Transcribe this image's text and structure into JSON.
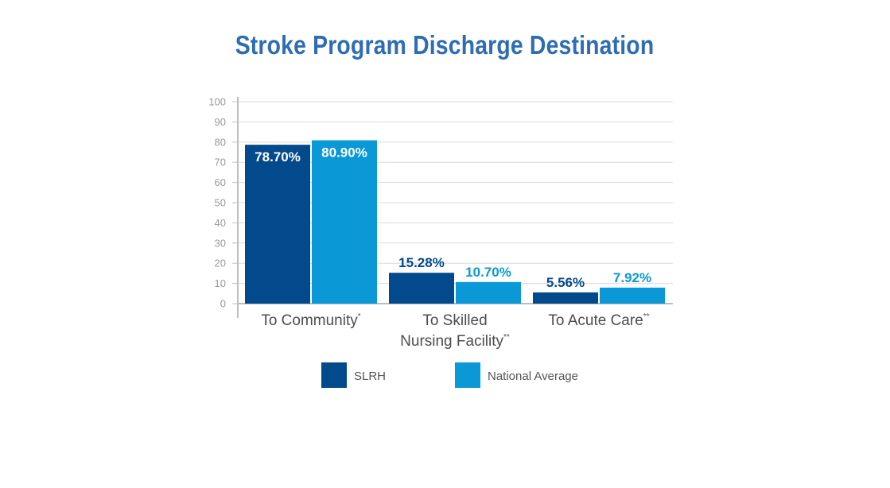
{
  "colors": {
    "title": "#2e6db4",
    "slrh": "#034a8c",
    "national": "#0a99d6",
    "grid": "#dcdcdc",
    "axis": "#bdbdbd"
  },
  "chart_data": {
    "type": "bar",
    "title": "Stroke Program Discharge Destination",
    "xlabel": "",
    "ylabel": "",
    "ylim": [
      0,
      100
    ],
    "yticks": [
      0,
      10,
      20,
      30,
      40,
      50,
      60,
      70,
      80,
      90,
      100
    ],
    "grid": true,
    "legend_position": "bottom",
    "categories": [
      {
        "lines": [
          "To Community"
        ],
        "superscript": "*"
      },
      {
        "lines": [
          "To Skilled",
          "Nursing Facility"
        ],
        "superscript": "**"
      },
      {
        "lines": [
          "To Acute Care"
        ],
        "superscript": "**"
      }
    ],
    "series": [
      {
        "name": "SLRH",
        "color": "#034a8c",
        "values": [
          78.7,
          15.28,
          5.56
        ],
        "labels": [
          "78.70%",
          "15.28%",
          "5.56%"
        ]
      },
      {
        "name": "National Average",
        "color": "#0a99d6",
        "values": [
          80.9,
          10.7,
          7.92
        ],
        "labels": [
          "80.90%",
          "10.70%",
          "7.92%"
        ]
      }
    ]
  }
}
